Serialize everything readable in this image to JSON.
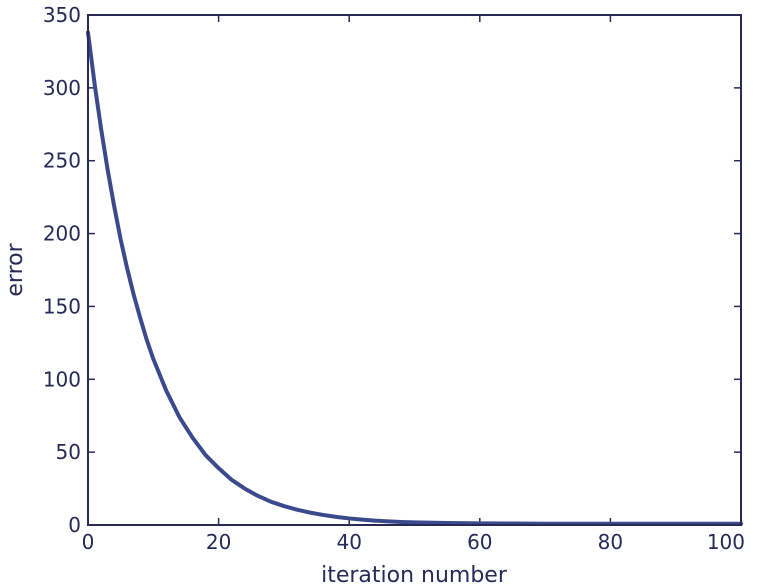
{
  "chart_data": {
    "type": "line",
    "title": "",
    "xlabel": "iteration number",
    "ylabel": "error",
    "xlim": [
      0,
      100
    ],
    "ylim": [
      0,
      350
    ],
    "xticks": [
      0,
      20,
      40,
      60,
      80,
      100
    ],
    "yticks": [
      0,
      50,
      100,
      150,
      200,
      250,
      300,
      350
    ],
    "grid": false,
    "legend": "none",
    "line_color": "#3b4a8c",
    "series": [
      {
        "x": [
          0,
          1,
          2,
          3,
          4,
          5,
          6,
          7,
          8,
          9,
          10,
          12,
          14,
          16,
          18,
          20,
          22,
          24,
          26,
          28,
          30,
          32,
          34,
          36,
          38,
          40,
          42,
          44,
          46,
          48,
          50,
          55,
          60,
          65,
          70,
          75,
          80,
          85,
          90,
          95,
          100
        ],
        "values": [
          338,
          303,
          272,
          244,
          219,
          196,
          176,
          158,
          142,
          127,
          114,
          92,
          74,
          60,
          48,
          39,
          31,
          25,
          20,
          16,
          13,
          10.5,
          8.5,
          6.9,
          5.6,
          4.5,
          3.7,
          3.0,
          2.5,
          2.1,
          1.8,
          1.4,
          1.1,
          1.0,
          0.9,
          0.9,
          0.9,
          0.9,
          0.9,
          0.9,
          0.9
        ]
      }
    ]
  }
}
